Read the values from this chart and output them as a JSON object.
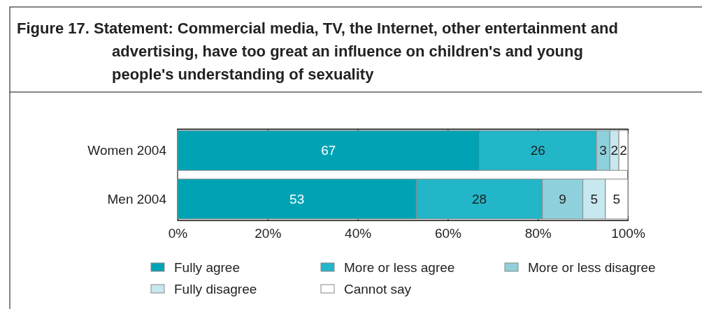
{
  "chart_data": {
    "type": "bar",
    "orientation": "horizontal",
    "stacked": true,
    "title": "Figure 17. Statement: Commercial media, TV, the Internet, other entertainment and advertising, have too great an influence on children's and young people's understanding of sexuality",
    "categories": [
      "Women 2004",
      "Men 2004"
    ],
    "series": [
      {
        "name": "Fully agree",
        "color": "#00a3b4",
        "values": [
          67,
          53
        ]
      },
      {
        "name": "More or less agree",
        "color": "#22b6c8",
        "values": [
          26,
          28
        ]
      },
      {
        "name": "More or less disagree",
        "color": "#8ed0dc",
        "values": [
          3,
          9
        ]
      },
      {
        "name": "Fully disagree",
        "color": "#c6e8ee",
        "values": [
          2,
          5
        ]
      },
      {
        "name": "Cannot say",
        "color": "#ffffff",
        "values": [
          2,
          5
        ]
      }
    ],
    "xlim": [
      0,
      100
    ],
    "xticks": [
      {
        "value": 0,
        "label": "0%"
      },
      {
        "value": 20,
        "label": "20%"
      },
      {
        "value": 40,
        "label": "40%"
      },
      {
        "value": 60,
        "label": "60%"
      },
      {
        "value": 80,
        "label": "80%"
      },
      {
        "value": 100,
        "label": "100%"
      }
    ],
    "data_labels": true,
    "legend": "bottom"
  }
}
